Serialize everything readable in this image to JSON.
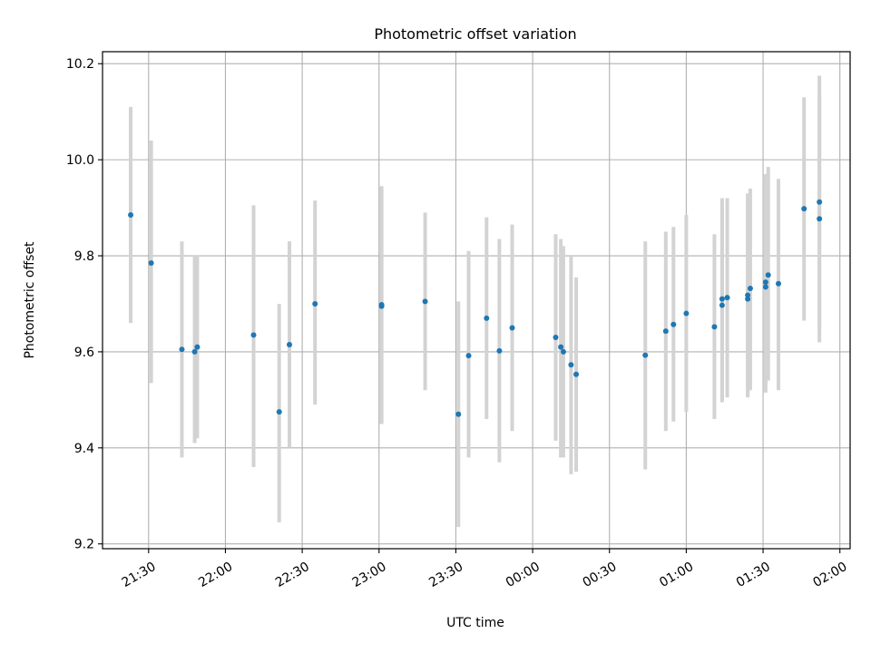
{
  "chart_data": {
    "type": "scatter",
    "title": "Photometric offset variation",
    "xlabel": "UTC time",
    "ylabel": "Photometric offset",
    "xlim": [
      "21:12",
      "02:04"
    ],
    "ylim": [
      9.19,
      10.225
    ],
    "grid": true,
    "x_ticks": [
      "21:30",
      "22:00",
      "22:30",
      "23:00",
      "23:30",
      "00:00",
      "00:30",
      "01:00",
      "01:30",
      "02:00"
    ],
    "y_ticks": [
      "9.2",
      "9.4",
      "9.6",
      "9.8",
      "10.0",
      "10.2"
    ],
    "colors": {
      "marker": "#1f77b4",
      "errorbar": "#d3d3d3",
      "grid": "#b0b0b0"
    },
    "series": [
      {
        "points": [
          {
            "t": "21:23",
            "y": 9.885,
            "lo": 9.66,
            "hi": 10.11
          },
          {
            "t": "21:31",
            "y": 9.785,
            "lo": 9.535,
            "hi": 10.04
          },
          {
            "t": "21:43",
            "y": 9.605,
            "lo": 9.38,
            "hi": 9.83
          },
          {
            "t": "21:48",
            "y": 9.6,
            "lo": 9.41,
            "hi": 9.8
          },
          {
            "t": "21:49",
            "y": 9.61,
            "lo": 9.42,
            "hi": 9.8
          },
          {
            "t": "22:11",
            "y": 9.635,
            "lo": 9.36,
            "hi": 9.905
          },
          {
            "t": "22:21",
            "y": 9.475,
            "lo": 9.245,
            "hi": 9.7
          },
          {
            "t": "22:25",
            "y": 9.615,
            "lo": 9.4,
            "hi": 9.83
          },
          {
            "t": "22:35",
            "y": 9.7,
            "lo": 9.49,
            "hi": 9.915
          },
          {
            "t": "23:01",
            "y": 9.695,
            "lo": 9.45,
            "hi": 9.94
          },
          {
            "t": "23:01",
            "y": 9.698,
            "lo": 9.45,
            "hi": 9.945
          },
          {
            "t": "23:18",
            "y": 9.705,
            "lo": 9.52,
            "hi": 9.89
          },
          {
            "t": "23:31",
            "y": 9.47,
            "lo": 9.235,
            "hi": 9.705
          },
          {
            "t": "23:35",
            "y": 9.592,
            "lo": 9.38,
            "hi": 9.81
          },
          {
            "t": "23:42",
            "y": 9.67,
            "lo": 9.46,
            "hi": 9.88
          },
          {
            "t": "23:47",
            "y": 9.602,
            "lo": 9.37,
            "hi": 9.835
          },
          {
            "t": "23:52",
            "y": 9.65,
            "lo": 9.435,
            "hi": 9.865
          },
          {
            "t": "00:09",
            "y": 9.63,
            "lo": 9.415,
            "hi": 9.845
          },
          {
            "t": "00:11",
            "y": 9.61,
            "lo": 9.38,
            "hi": 9.835
          },
          {
            "t": "00:12",
            "y": 9.6,
            "lo": 9.38,
            "hi": 9.82
          },
          {
            "t": "00:15",
            "y": 9.573,
            "lo": 9.345,
            "hi": 9.8
          },
          {
            "t": "00:17",
            "y": 9.553,
            "lo": 9.35,
            "hi": 9.755
          },
          {
            "t": "00:44",
            "y": 9.593,
            "lo": 9.355,
            "hi": 9.83
          },
          {
            "t": "00:52",
            "y": 9.643,
            "lo": 9.435,
            "hi": 9.85
          },
          {
            "t": "00:55",
            "y": 9.657,
            "lo": 9.455,
            "hi": 9.86
          },
          {
            "t": "01:00",
            "y": 9.68,
            "lo": 9.475,
            "hi": 9.885
          },
          {
            "t": "01:11",
            "y": 9.652,
            "lo": 9.46,
            "hi": 9.845
          },
          {
            "t": "01:14",
            "y": 9.697,
            "lo": 9.495,
            "hi": 9.9
          },
          {
            "t": "01:14",
            "y": 9.71,
            "lo": 9.5,
            "hi": 9.92
          },
          {
            "t": "01:16",
            "y": 9.713,
            "lo": 9.505,
            "hi": 9.92
          },
          {
            "t": "01:24",
            "y": 9.71,
            "lo": 9.505,
            "hi": 9.915
          },
          {
            "t": "01:24",
            "y": 9.718,
            "lo": 9.51,
            "hi": 9.93
          },
          {
            "t": "01:25",
            "y": 9.732,
            "lo": 9.52,
            "hi": 9.94
          },
          {
            "t": "01:31",
            "y": 9.735,
            "lo": 9.515,
            "hi": 9.955
          },
          {
            "t": "01:31",
            "y": 9.745,
            "lo": 9.53,
            "hi": 9.97
          },
          {
            "t": "01:32",
            "y": 9.76,
            "lo": 9.54,
            "hi": 9.985
          },
          {
            "t": "01:36",
            "y": 9.742,
            "lo": 9.52,
            "hi": 9.96
          },
          {
            "t": "01:46",
            "y": 9.898,
            "lo": 9.665,
            "hi": 10.13
          },
          {
            "t": "01:52",
            "y": 9.912,
            "lo": 9.65,
            "hi": 10.175
          },
          {
            "t": "01:52",
            "y": 9.877,
            "lo": 9.62,
            "hi": 10.135
          }
        ]
      }
    ]
  }
}
